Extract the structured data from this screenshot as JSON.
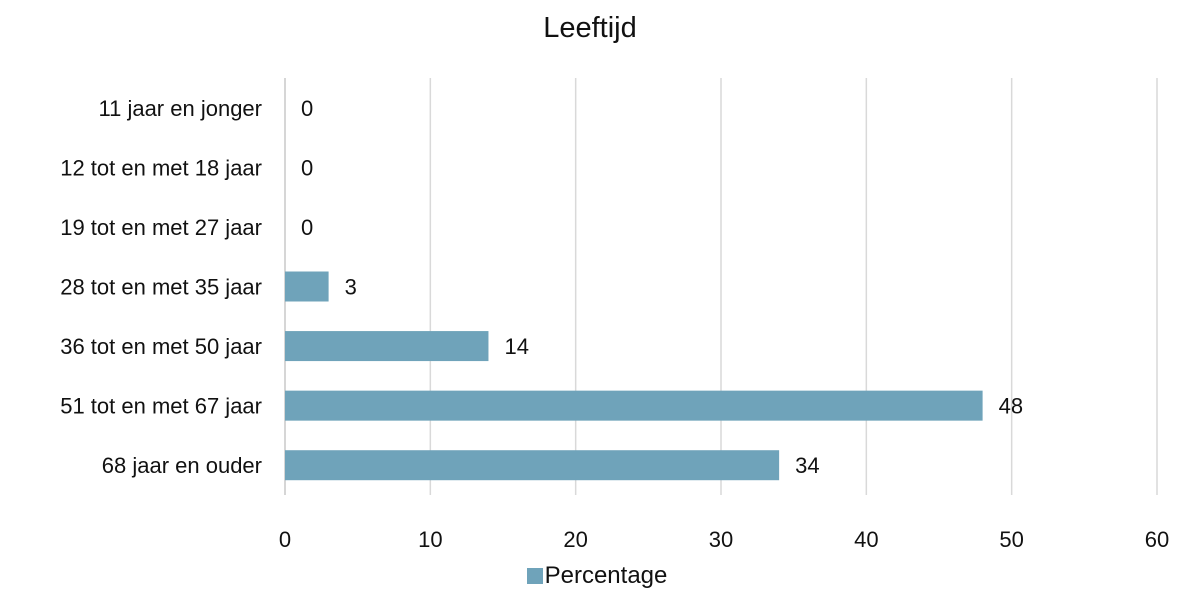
{
  "chart_data": {
    "type": "bar",
    "orientation": "horizontal",
    "title": "Leeftijd",
    "categories": [
      "11 jaar en jonger",
      "12 tot en met 18 jaar",
      "19 tot en met 27 jaar",
      "28 tot en met 35 jaar",
      "36 tot en met 50 jaar",
      "51 tot en met 67 jaar",
      "68 jaar en ouder"
    ],
    "series": [
      {
        "name": "Percentage",
        "values": [
          0,
          0,
          0,
          3,
          14,
          48,
          34
        ],
        "color": "#6fa3ba"
      }
    ],
    "data_labels": [
      "0",
      "0",
      "0",
      "3",
      "14",
      "48",
      "34"
    ],
    "x_ticks": [
      "0",
      "10",
      "20",
      "30",
      "40",
      "50",
      "60"
    ],
    "xlim": [
      0,
      60
    ],
    "xlabel": "",
    "ylabel": "",
    "grid": "vertical",
    "legend_position": "bottom"
  }
}
